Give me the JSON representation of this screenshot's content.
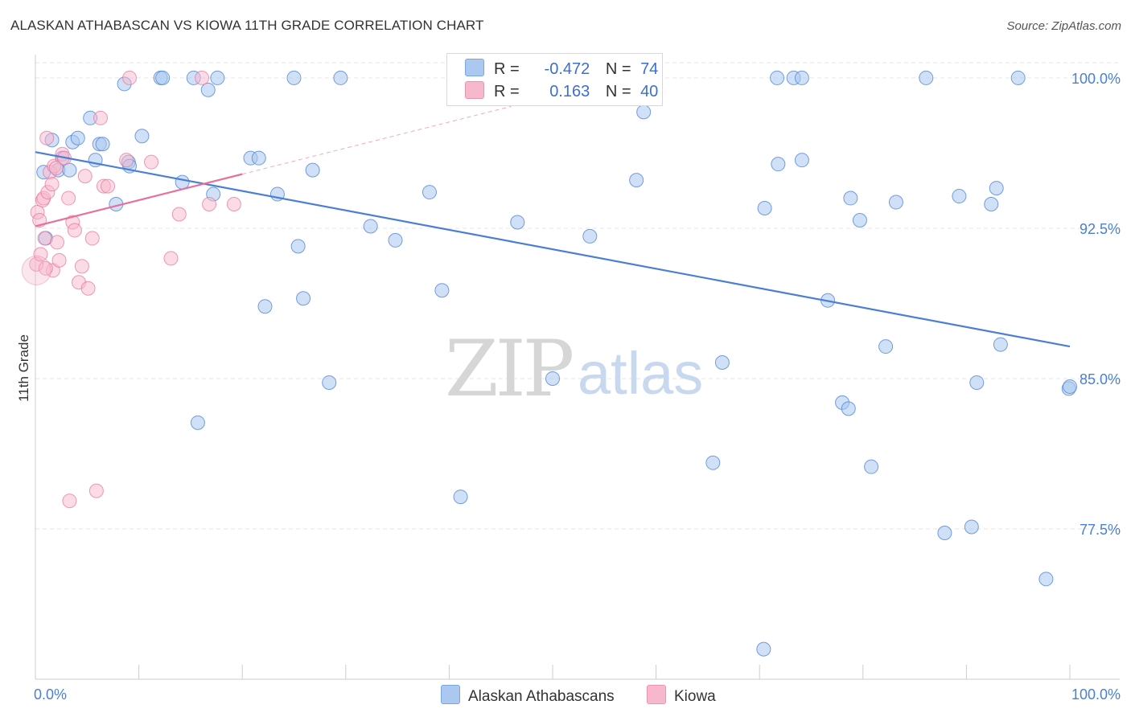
{
  "title": "ALASKAN ATHABASCAN VS KIOWA 11TH GRADE CORRELATION CHART",
  "source": "Source: ZipAtlas.com",
  "colors": {
    "blue": "#4a7fd4",
    "blue_fill": "#aac8f0",
    "pink": "#e8709a",
    "pink_fill": "#f7b8cc",
    "grid": "#e6e6e6",
    "tick_text": "#4a7fd4"
  },
  "legend": {
    "blue": {
      "r_label": "R =",
      "r_value": "-0.472",
      "n_label": "N =",
      "n_value": "74"
    },
    "pink": {
      "r_label": "R =",
      "r_value": "0.163",
      "n_label": "N =",
      "n_value": "40"
    }
  },
  "watermark": {
    "zip": "ZIP",
    "atlas": "atlas"
  },
  "chart_data": {
    "type": "scatter",
    "title": "ALASKAN ATHABASCAN VS KIOWA 11TH GRADE CORRELATION CHART",
    "xlabel": "",
    "ylabel": "11th Grade",
    "xlim": [
      0,
      100
    ],
    "ylim": [
      70,
      101
    ],
    "x_tick_labels": [
      "0.0%",
      "100.0%"
    ],
    "y_ticks": [
      77.5,
      85.0,
      92.5,
      100.0
    ],
    "y_tick_labels": [
      "77.5%",
      "85.0%",
      "92.5%",
      "100.0%"
    ],
    "legend_position": "top-center",
    "series": [
      {
        "name": "Alaskan Athabascans",
        "color": "#4a7fd4",
        "r": -0.472,
        "n": 74,
        "trend": {
          "x": [
            0,
            100
          ],
          "y": [
            96.3,
            86.6
          ]
        },
        "points": [
          [
            0.8,
            95.3
          ],
          [
            1.0,
            92.0
          ],
          [
            1.6,
            96.9
          ],
          [
            2.2,
            95.4
          ],
          [
            2.6,
            96.0
          ],
          [
            3.3,
            95.4
          ],
          [
            3.6,
            96.8
          ],
          [
            4.1,
            97.0
          ],
          [
            5.3,
            98.0
          ],
          [
            5.8,
            95.9
          ],
          [
            6.2,
            96.7
          ],
          [
            6.5,
            96.7
          ],
          [
            7.8,
            93.7
          ],
          [
            8.6,
            99.7
          ],
          [
            9.0,
            95.8
          ],
          [
            9.1,
            95.6
          ],
          [
            10.3,
            97.1
          ],
          [
            12.1,
            100.0
          ],
          [
            12.3,
            100.0
          ],
          [
            14.2,
            94.8
          ],
          [
            15.3,
            100.0
          ],
          [
            15.7,
            82.8
          ],
          [
            16.7,
            99.4
          ],
          [
            17.6,
            100.0
          ],
          [
            17.2,
            94.2
          ],
          [
            20.8,
            96.0
          ],
          [
            21.6,
            96.0
          ],
          [
            22.2,
            88.6
          ],
          [
            23.4,
            94.2
          ],
          [
            25.0,
            100.0
          ],
          [
            25.4,
            91.6
          ],
          [
            25.9,
            89.0
          ],
          [
            26.8,
            95.4
          ],
          [
            28.4,
            84.8
          ],
          [
            29.5,
            100.0
          ],
          [
            32.4,
            92.6
          ],
          [
            34.8,
            91.9
          ],
          [
            38.1,
            94.3
          ],
          [
            39.3,
            89.4
          ],
          [
            41.1,
            79.1
          ],
          [
            46.6,
            92.8
          ],
          [
            50.0,
            85.0
          ],
          [
            53.6,
            92.1
          ],
          [
            58.1,
            94.9
          ],
          [
            58.8,
            98.3
          ],
          [
            65.5,
            80.8
          ],
          [
            66.4,
            85.8
          ],
          [
            70.4,
            71.5
          ],
          [
            70.5,
            93.5
          ],
          [
            71.7,
            100.0
          ],
          [
            73.3,
            100.0
          ],
          [
            74.1,
            100.0
          ],
          [
            71.8,
            95.7
          ],
          [
            74.1,
            95.9
          ],
          [
            76.6,
            88.9
          ],
          [
            78.0,
            83.8
          ],
          [
            78.6,
            83.5
          ],
          [
            78.8,
            94.0
          ],
          [
            79.7,
            92.9
          ],
          [
            80.8,
            80.6
          ],
          [
            82.2,
            86.6
          ],
          [
            83.2,
            93.8
          ],
          [
            86.1,
            100.0
          ],
          [
            87.9,
            77.3
          ],
          [
            89.3,
            94.1
          ],
          [
            90.5,
            77.6
          ],
          [
            91.0,
            84.8
          ],
          [
            92.4,
            93.7
          ],
          [
            92.9,
            94.5
          ],
          [
            93.3,
            86.7
          ],
          [
            97.7,
            75.0
          ],
          [
            99.9,
            84.5
          ],
          [
            100.0,
            84.6
          ],
          [
            95.0,
            100.0
          ]
        ]
      },
      {
        "name": "Kiowa",
        "color": "#e8709a",
        "r": 0.163,
        "n": 40,
        "trend": {
          "x": [
            0,
            20
          ],
          "y": [
            92.6,
            95.2
          ]
        },
        "points": [
          [
            0.1,
            90.7
          ],
          [
            0.2,
            93.3
          ],
          [
            0.4,
            92.9
          ],
          [
            0.5,
            91.2
          ],
          [
            0.7,
            93.9
          ],
          [
            0.8,
            94.0
          ],
          [
            0.9,
            92.0
          ],
          [
            1.1,
            97.0
          ],
          [
            1.2,
            94.3
          ],
          [
            1.4,
            95.3
          ],
          [
            1.6,
            94.7
          ],
          [
            1.7,
            90.4
          ],
          [
            1.8,
            95.6
          ],
          [
            2.1,
            91.8
          ],
          [
            2.3,
            90.9
          ],
          [
            2.6,
            96.2
          ],
          [
            2.8,
            96.0
          ],
          [
            3.2,
            94.0
          ],
          [
            3.3,
            78.9
          ],
          [
            3.6,
            92.8
          ],
          [
            3.8,
            92.4
          ],
          [
            4.2,
            89.8
          ],
          [
            4.5,
            90.6
          ],
          [
            4.8,
            95.1
          ],
          [
            5.1,
            89.5
          ],
          [
            5.5,
            92.0
          ],
          [
            5.9,
            79.4
          ],
          [
            6.3,
            98.0
          ],
          [
            6.6,
            94.6
          ],
          [
            7.0,
            94.6
          ],
          [
            8.8,
            95.9
          ],
          [
            9.1,
            100.0
          ],
          [
            11.2,
            95.8
          ],
          [
            13.1,
            91.0
          ],
          [
            13.9,
            93.2
          ],
          [
            16.1,
            100.0
          ],
          [
            16.8,
            93.7
          ],
          [
            19.2,
            93.7
          ],
          [
            2.0,
            95.5
          ],
          [
            1.0,
            90.5
          ]
        ]
      }
    ]
  },
  "bottom_legend": [
    {
      "label": "Alaskan Athabascans",
      "color": "#aac8f0"
    },
    {
      "label": "Kiowa",
      "color": "#f7b8cc"
    }
  ]
}
